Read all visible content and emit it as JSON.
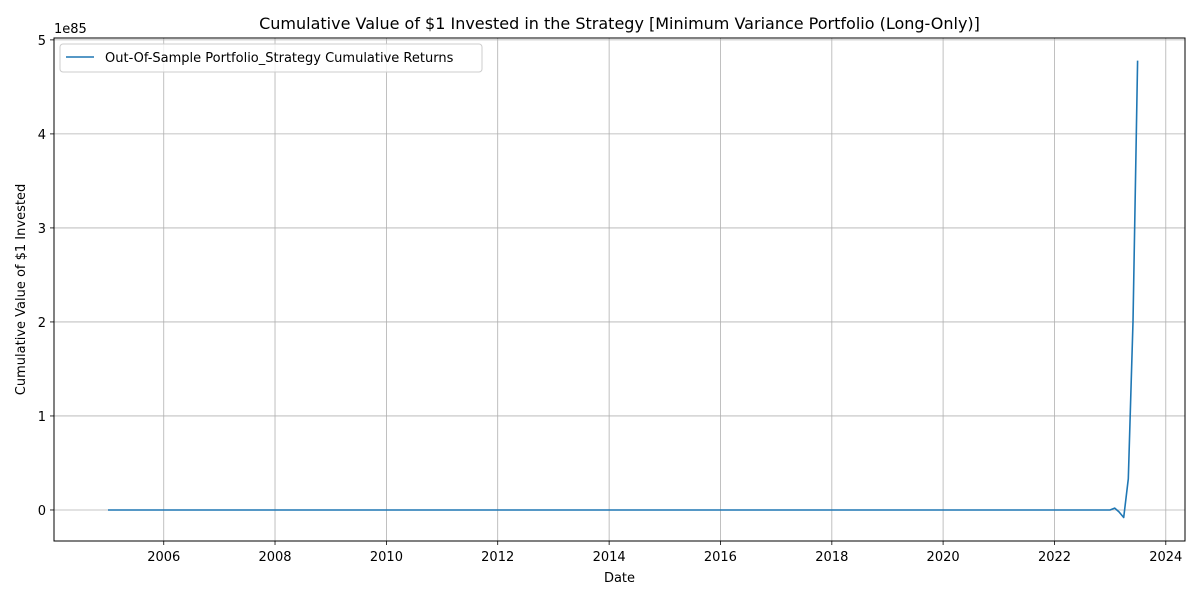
{
  "chart_data": {
    "type": "line",
    "title": "Cumulative Value of $1 Invested in the Strategy [Minimum Variance Portfolio (Long-Only)]",
    "xlabel": "Date",
    "ylabel": "Cumulative Value of $1 Invested",
    "y_offset_label": "1e85",
    "xlim": [
      "2004-01-12",
      "2024-05-06"
    ],
    "ylim": [
      -0.33,
      5.02
    ],
    "x_ticks": [
      "2006",
      "2008",
      "2010",
      "2012",
      "2014",
      "2016",
      "2018",
      "2020",
      "2022",
      "2024"
    ],
    "y_ticks": [
      "0",
      "1",
      "2",
      "3",
      "4",
      "5"
    ],
    "grid": true,
    "legend_position": "upper-left",
    "colors": {
      "series": "#1f77b4",
      "grid": "#b0b0b0"
    },
    "series": [
      {
        "name": "Out-Of-Sample Portfolio_Strategy Cumulative Returns",
        "x": [
          "2004-12-31",
          "2022-10-31",
          "2022-11-30",
          "2022-12-31",
          "2023-01-31",
          "2023-02-28",
          "2023-03-31",
          "2023-04-30",
          "2023-05-31",
          "2023-06-30"
        ],
        "y": [
          0.0,
          0.0,
          0.0,
          0.0,
          0.02,
          -0.02,
          -0.08,
          0.33,
          2.0,
          4.78
        ]
      }
    ]
  }
}
